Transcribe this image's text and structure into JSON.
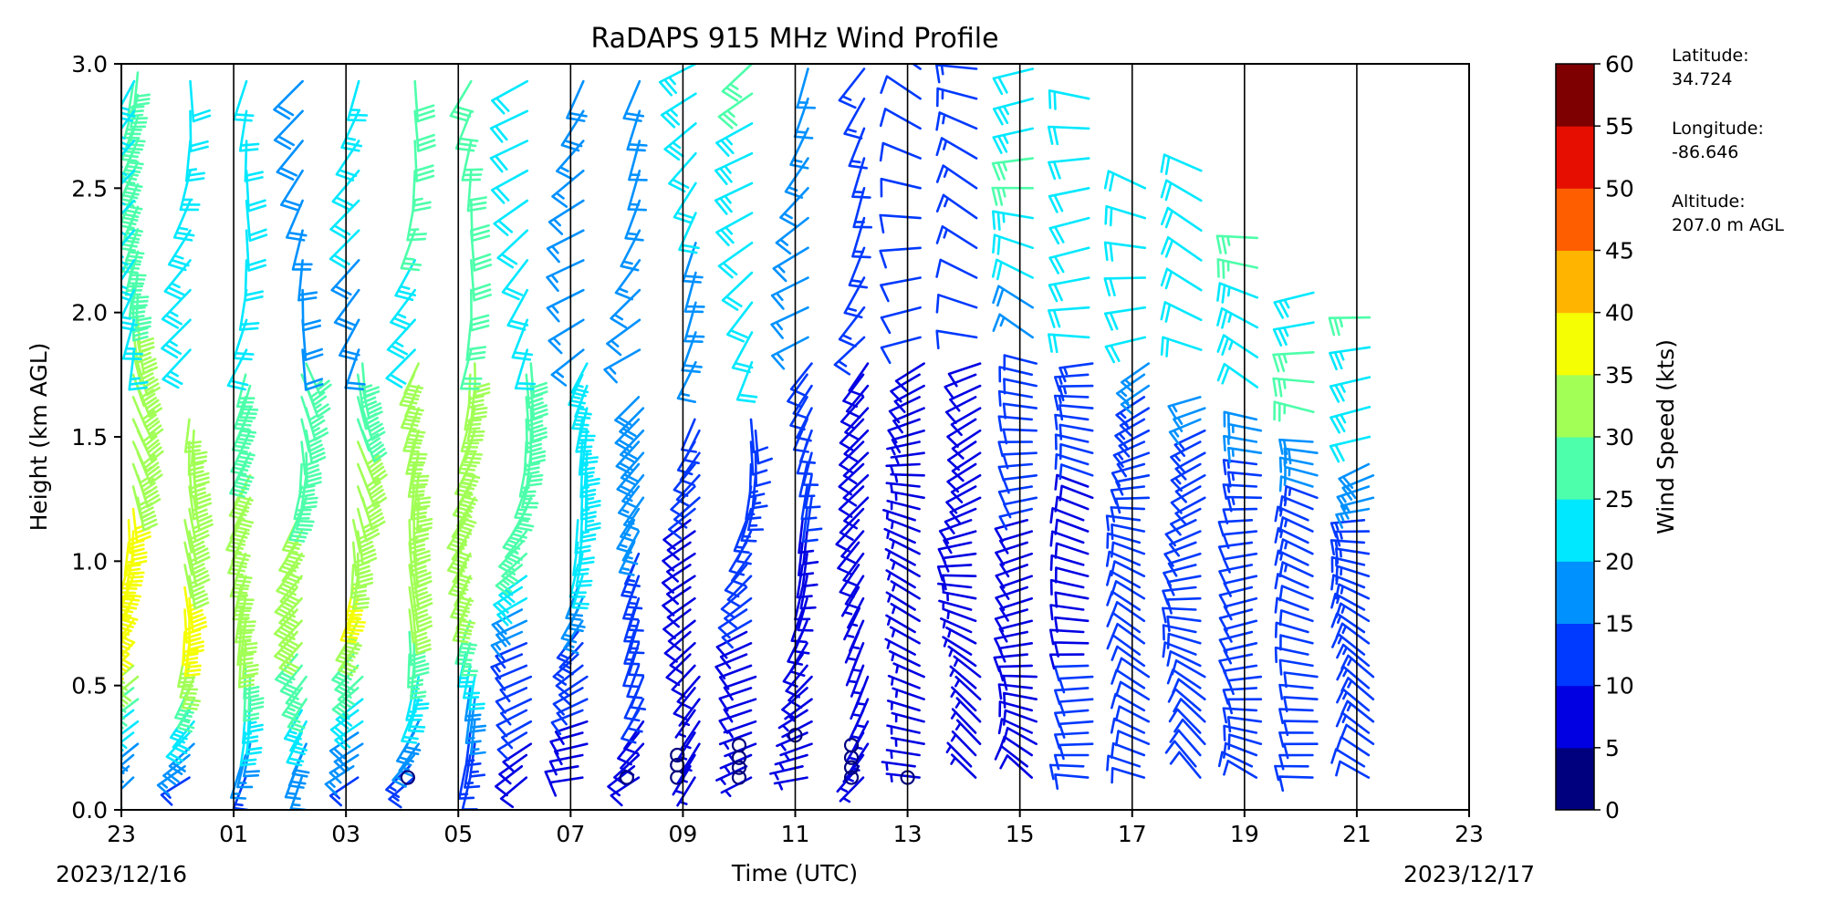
{
  "chart_data": {
    "type": "wind_barb",
    "title": "RaDAPS 915 MHz Wind Profile",
    "xlabel": "Time (UTC)",
    "ylabel": "Height (km AGL)",
    "x_ticks": [
      "23",
      "01",
      "03",
      "05",
      "07",
      "09",
      "11",
      "13",
      "15",
      "17",
      "19",
      "21",
      "23"
    ],
    "x_start_date": "2023/12/16",
    "x_end_date": "2023/12/17",
    "xlim_hours": [
      0,
      24
    ],
    "y_ticks": [
      "0.0",
      "0.5",
      "1.0",
      "1.5",
      "2.0",
      "2.5",
      "3.0"
    ],
    "ylim": [
      0,
      3
    ],
    "vertical_lines_hours": [
      0,
      2,
      4,
      6,
      8,
      10,
      12,
      14,
      16,
      18,
      20,
      22
    ],
    "colorbar": {
      "label": "Wind Speed (kts)",
      "ticks": [
        "0",
        "5",
        "10",
        "15",
        "20",
        "25",
        "30",
        "35",
        "40",
        "45",
        "50",
        "55",
        "60"
      ],
      "colors": [
        "#00007f",
        "#0000e3",
        "#0039ff",
        "#0091ff",
        "#00e8ff",
        "#4dffaa",
        "#a1ff56",
        "#f5fe02",
        "#ffb400",
        "#ff5e00",
        "#e60e00",
        "#7f0000"
      ]
    },
    "info": {
      "latitude_label": "Latitude:",
      "latitude": "34.724",
      "longitude_label": "Longitude:",
      "longitude": "-86.646",
      "altitude_label": "Altitude:",
      "altitude": "207.0 m AGL"
    },
    "profiles": [
      {
        "hour": 0.0,
        "low": [
          [
            0.0,
            11
          ],
          [
            0.35,
            22
          ],
          [
            0.7,
            40
          ],
          [
            1.0,
            38
          ],
          [
            1.5,
            32
          ],
          [
            2.5,
            28
          ],
          [
            3.0,
            30
          ]
        ],
        "high": [
          [
            1.85,
            24
          ],
          [
            3.0,
            25
          ]
        ]
      },
      {
        "hour": 1.0,
        "low": [
          [
            0.0,
            10
          ],
          [
            0.35,
            22
          ],
          [
            0.7,
            38
          ],
          [
            1.0,
            34
          ],
          [
            1.6,
            30
          ]
        ],
        "high": [
          [
            1.85,
            24
          ],
          [
            3.0,
            22
          ]
        ]
      },
      {
        "hour": 2.0,
        "low": [
          [
            0.0,
            10
          ],
          [
            0.4,
            23
          ],
          [
            0.75,
            35
          ],
          [
            1.0,
            32
          ],
          [
            1.75,
            28
          ]
        ],
        "high": [
          [
            1.85,
            20
          ],
          [
            3.0,
            21
          ]
        ]
      },
      {
        "hour": 3.0,
        "low": [
          [
            0.0,
            12
          ],
          [
            0.4,
            24
          ],
          [
            0.8,
            34
          ],
          [
            1.2,
            30
          ],
          [
            1.8,
            26
          ]
        ],
        "high": [
          [
            1.85,
            18
          ],
          [
            3.0,
            20
          ]
        ]
      },
      {
        "hour": 4.0,
        "low": [
          [
            0.0,
            10
          ],
          [
            0.4,
            22
          ],
          [
            0.8,
            36
          ],
          [
            1.2,
            33
          ],
          [
            1.8,
            27
          ]
        ],
        "high": [
          [
            1.85,
            18
          ],
          [
            3.0,
            24
          ]
        ]
      },
      {
        "hour": 5.0,
        "low": [
          [
            0.0,
            10
          ],
          [
            0.5,
            24
          ],
          [
            0.9,
            35
          ],
          [
            1.3,
            33
          ],
          [
            1.8,
            30
          ]
        ],
        "high": [
          [
            1.85,
            22
          ],
          [
            3.0,
            30
          ]
        ]
      },
      {
        "hour": 6.0,
        "low": [
          [
            0.0,
            10
          ],
          [
            0.4,
            16
          ],
          [
            0.8,
            30
          ],
          [
            1.3,
            33
          ],
          [
            1.8,
            31
          ]
        ],
        "high": [
          [
            1.85,
            28
          ],
          [
            3.0,
            30
          ]
        ]
      },
      {
        "hour": 7.0,
        "low": [
          [
            0.0,
            8
          ],
          [
            0.6,
            12
          ],
          [
            1.0,
            26
          ],
          [
            1.8,
            29
          ]
        ],
        "high": [
          [
            1.85,
            20
          ],
          [
            3.0,
            22
          ]
        ]
      },
      {
        "hour": 8.0,
        "low": [
          [
            0.0,
            7
          ],
          [
            0.6,
            12
          ],
          [
            1.0,
            22
          ],
          [
            1.8,
            24
          ]
        ],
        "high": [
          [
            1.85,
            16
          ],
          [
            3.0,
            18
          ]
        ]
      },
      {
        "hour": 9.0,
        "low": [
          [
            0.0,
            7
          ],
          [
            0.6,
            12
          ],
          [
            1.2,
            16
          ],
          [
            1.7,
            20
          ]
        ],
        "high": [
          [
            1.85,
            16
          ],
          [
            3.0,
            18
          ]
        ]
      },
      {
        "hour": 10.0,
        "low": [
          [
            0.0,
            6
          ],
          [
            0.6,
            8
          ],
          [
            1.2,
            10
          ],
          [
            1.6,
            11
          ]
        ],
        "high": [
          [
            1.8,
            17
          ],
          [
            3.0,
            24
          ]
        ]
      },
      {
        "hour": 11.0,
        "low": [
          [
            0.0,
            5
          ],
          [
            0.6,
            9
          ],
          [
            1.2,
            13
          ],
          [
            1.6,
            12
          ]
        ],
        "high": [
          [
            1.8,
            20
          ],
          [
            3.0,
            26
          ]
        ]
      },
      {
        "hour": 12.0,
        "low": [
          [
            0.0,
            6
          ],
          [
            0.6,
            8
          ],
          [
            1.2,
            10
          ],
          [
            1.8,
            12
          ]
        ],
        "high": [
          [
            1.9,
            15
          ],
          [
            3.0,
            17
          ]
        ]
      },
      {
        "hour": 13.0,
        "low": [
          [
            0.0,
            6
          ],
          [
            0.6,
            7
          ],
          [
            1.2,
            8
          ],
          [
            1.8,
            9
          ]
        ],
        "high": [
          [
            1.9,
            14
          ],
          [
            3.0,
            15
          ]
        ]
      },
      {
        "hour": 14.0,
        "low": [
          [
            0.0,
            5
          ],
          [
            0.6,
            6
          ],
          [
            1.2,
            7
          ],
          [
            1.8,
            8
          ]
        ],
        "high": [
          [
            1.9,
            11
          ],
          [
            3.0,
            12
          ]
        ]
      },
      {
        "hour": 15.0,
        "low": [
          [
            0.0,
            6
          ],
          [
            0.6,
            7
          ],
          [
            1.2,
            8
          ],
          [
            1.8,
            8
          ]
        ],
        "high": [
          [
            1.9,
            12
          ],
          [
            3.0,
            14
          ]
        ]
      },
      {
        "hour": 16.0,
        "low": [
          [
            0.0,
            8
          ],
          [
            0.6,
            9
          ],
          [
            1.2,
            10
          ],
          [
            1.8,
            12
          ]
        ],
        "high": [
          [
            1.9,
            16
          ],
          [
            2.5,
            26
          ],
          [
            3.0,
            22
          ]
        ]
      },
      {
        "hour": 17.0,
        "low": [
          [
            0.0,
            10
          ],
          [
            0.6,
            10
          ],
          [
            1.2,
            9
          ],
          [
            1.8,
            14
          ]
        ],
        "high": [
          [
            1.9,
            20
          ],
          [
            2.9,
            22
          ]
        ]
      },
      {
        "hour": 18.0,
        "low": [
          [
            0.0,
            10
          ],
          [
            0.6,
            11
          ],
          [
            1.2,
            10
          ],
          [
            1.8,
            16
          ]
        ],
        "high": [
          [
            1.9,
            20
          ],
          [
            2.6,
            22
          ]
        ]
      },
      {
        "hour": 19.0,
        "low": [
          [
            0.0,
            12
          ],
          [
            0.6,
            11
          ],
          [
            1.2,
            10
          ],
          [
            1.7,
            17
          ]
        ],
        "high": [
          [
            1.85,
            20
          ],
          [
            2.6,
            22
          ]
        ]
      },
      {
        "hour": 20.0,
        "low": [
          [
            0.0,
            12
          ],
          [
            0.6,
            12
          ],
          [
            1.2,
            12
          ],
          [
            1.6,
            18
          ]
        ],
        "high": [
          [
            1.7,
            22
          ],
          [
            2.4,
            27
          ]
        ]
      },
      {
        "hour": 21.0,
        "low": [
          [
            0.0,
            12
          ],
          [
            0.6,
            12
          ],
          [
            1.2,
            13
          ],
          [
            1.5,
            20
          ]
        ],
        "high": [
          [
            1.6,
            26
          ],
          [
            2.1,
            24
          ]
        ]
      },
      {
        "hour": 22.0,
        "low": [
          [
            0.0,
            12
          ],
          [
            0.6,
            13
          ],
          [
            1.2,
            15
          ],
          [
            1.4,
            20
          ]
        ],
        "high": [
          [
            1.5,
            22
          ],
          [
            2.0,
            26
          ]
        ]
      }
    ],
    "calm_points": [
      [
        5.1,
        0.13
      ],
      [
        9.0,
        0.13
      ],
      [
        9.9,
        0.13
      ],
      [
        9.9,
        0.18
      ],
      [
        9.9,
        0.22
      ],
      [
        11.0,
        0.13
      ],
      [
        11.0,
        0.17
      ],
      [
        11.0,
        0.21
      ],
      [
        11.0,
        0.26
      ],
      [
        12.0,
        0.3
      ],
      [
        13.0,
        0.13
      ],
      [
        13.0,
        0.17
      ],
      [
        13.0,
        0.21
      ],
      [
        13.0,
        0.26
      ],
      [
        14.0,
        0.13
      ]
    ]
  }
}
